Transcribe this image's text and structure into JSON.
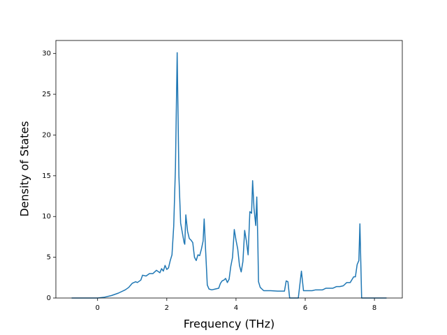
{
  "chart_data": {
    "type": "line",
    "xlabel": "Frequency (THz)",
    "ylabel": "Density of States",
    "x": [
      -0.75,
      0.0,
      0.2,
      0.4,
      0.6,
      0.8,
      0.9,
      1.0,
      1.1,
      1.15,
      1.25,
      1.3,
      1.4,
      1.5,
      1.6,
      1.7,
      1.8,
      1.85,
      1.9,
      1.95,
      2.0,
      2.05,
      2.1,
      2.15,
      2.2,
      2.25,
      2.3,
      2.35,
      2.4,
      2.45,
      2.5,
      2.52,
      2.55,
      2.6,
      2.65,
      2.7,
      2.75,
      2.8,
      2.85,
      2.9,
      2.95,
      3.0,
      3.05,
      3.08,
      3.12,
      3.17,
      3.22,
      3.3,
      3.4,
      3.5,
      3.55,
      3.6,
      3.65,
      3.7,
      3.75,
      3.8,
      3.85,
      3.9,
      3.95,
      4.0,
      4.05,
      4.1,
      4.15,
      4.2,
      4.25,
      4.3,
      4.35,
      4.4,
      4.45,
      4.48,
      4.52,
      4.57,
      4.6,
      4.63,
      4.65,
      4.7,
      4.8,
      5.0,
      5.2,
      5.4,
      5.45,
      5.5,
      5.55,
      5.8,
      5.89,
      5.95,
      6.2,
      6.3,
      6.5,
      6.6,
      6.8,
      6.9,
      7.0,
      7.1,
      7.2,
      7.3,
      7.4,
      7.45,
      7.5,
      7.55,
      7.58,
      7.63,
      8.35
    ],
    "values": [
      0,
      0,
      0.1,
      0.3,
      0.6,
      1.0,
      1.3,
      1.8,
      2.0,
      1.9,
      2.2,
      2.8,
      2.7,
      3.0,
      3.0,
      3.4,
      3.1,
      3.6,
      3.3,
      4.0,
      3.5,
      3.7,
      4.6,
      5.3,
      8.8,
      16,
      30.1,
      15,
      9.2,
      8.0,
      6.8,
      6.6,
      10.2,
      8.2,
      7.3,
      7.1,
      6.8,
      5.0,
      4.6,
      5.3,
      5.2,
      6.0,
      7.0,
      9.7,
      6.0,
      1.6,
      1.1,
      1.0,
      1.1,
      1.2,
      1.8,
      2.1,
      2.2,
      2.4,
      1.9,
      2.3,
      3.9,
      5.0,
      8.4,
      7.1,
      6.0,
      4.0,
      3.2,
      4.5,
      8.3,
      7.0,
      5.3,
      10.6,
      10.4,
      14.4,
      11.0,
      8.9,
      12.4,
      7.0,
      2.0,
      1.3,
      0.9,
      0.9,
      0.85,
      0.85,
      2.1,
      2.0,
      0,
      0,
      3.3,
      0.9,
      0.9,
      1.0,
      1.0,
      1.2,
      1.2,
      1.4,
      1.4,
      1.5,
      1.9,
      1.9,
      2.6,
      2.6,
      4.1,
      4.6,
      9.1,
      0,
      0
    ],
    "color": "#1f77b4",
    "xlim": [
      -1.205,
      8.805
    ],
    "xticks": [
      0,
      2,
      4,
      6,
      8
    ],
    "ylim": [
      0,
      31.6
    ],
    "yticks": [
      0,
      5,
      10,
      15,
      20,
      25,
      30
    ]
  }
}
